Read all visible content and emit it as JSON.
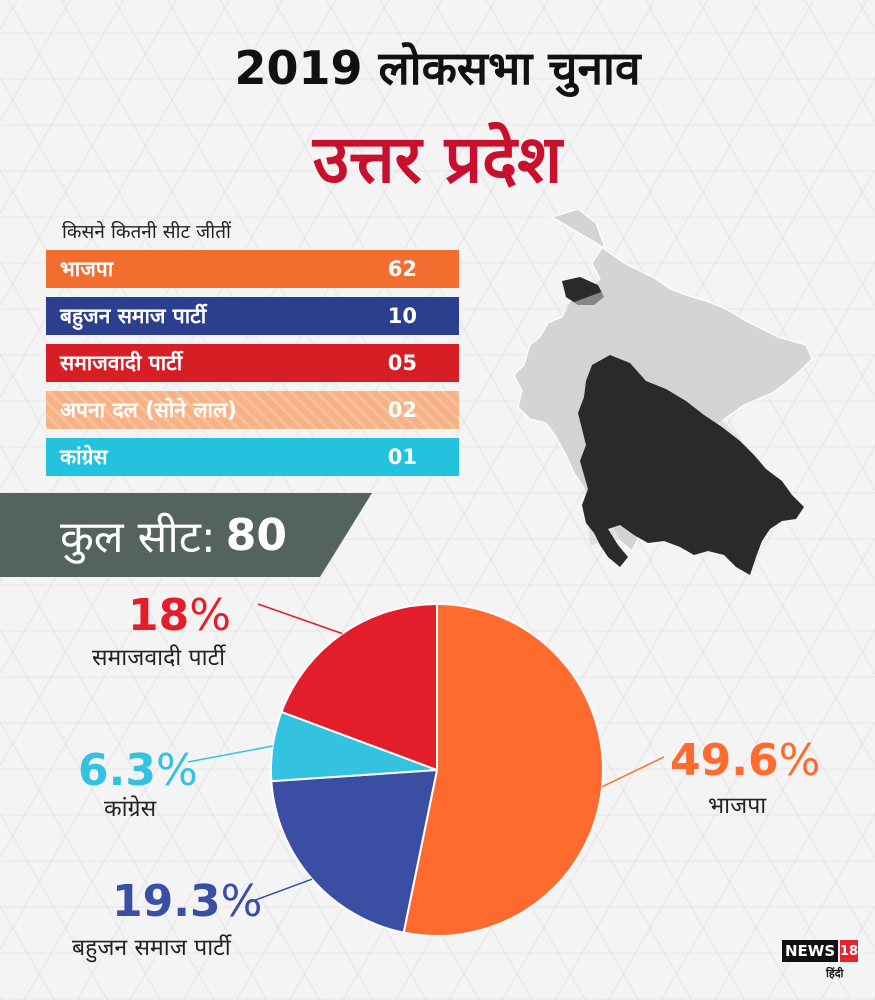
{
  "header": {
    "title_line1": "2019 लोकसभा चुनाव",
    "title_line2": "उत्तर प्रदेश",
    "title_line2_color": "#c8102e"
  },
  "seats_section": {
    "label": "किसने कितनी सीट जीतीं",
    "rows": [
      {
        "party": "भाजपा",
        "seats": "62",
        "color": "#f26e2f",
        "hatched": false
      },
      {
        "party": "बहुजन समाज पार्टी",
        "seats": "10",
        "color": "#2b3f8e",
        "hatched": false
      },
      {
        "party": "समाजवादी पार्टी",
        "seats": "05",
        "color": "#d81e25",
        "hatched": false
      },
      {
        "party": "अपना दल (सोने लाल)",
        "seats": "02",
        "color": "#f6b285",
        "hatched": true
      },
      {
        "party": "कांग्रेस",
        "seats": "01",
        "color": "#23c3df",
        "hatched": false
      }
    ]
  },
  "total": {
    "label": "कुल सीट:",
    "value": "80"
  },
  "map": {
    "country_color": "#d4d4d4",
    "state_color": "#2a2a2a"
  },
  "chart_data": {
    "type": "pie",
    "title": "",
    "slices": [
      {
        "name": "भाजपा",
        "value": 49.6,
        "label": "49.6",
        "color": "#ff6a2e"
      },
      {
        "name": "बहुजन समाज पार्टी",
        "value": 19.3,
        "label": "19.3",
        "color": "#3a4ea4"
      },
      {
        "name": "कांग्रेस",
        "value": 6.3,
        "label": "6.3",
        "color": "#33c3e0"
      },
      {
        "name": "समाजवादी पार्टी",
        "value": 18,
        "label": "18",
        "color": "#e41d2a"
      }
    ],
    "percent_symbol": "%"
  },
  "logo": {
    "brand": "NEWS",
    "number": "18",
    "sub": "हिंदी"
  }
}
